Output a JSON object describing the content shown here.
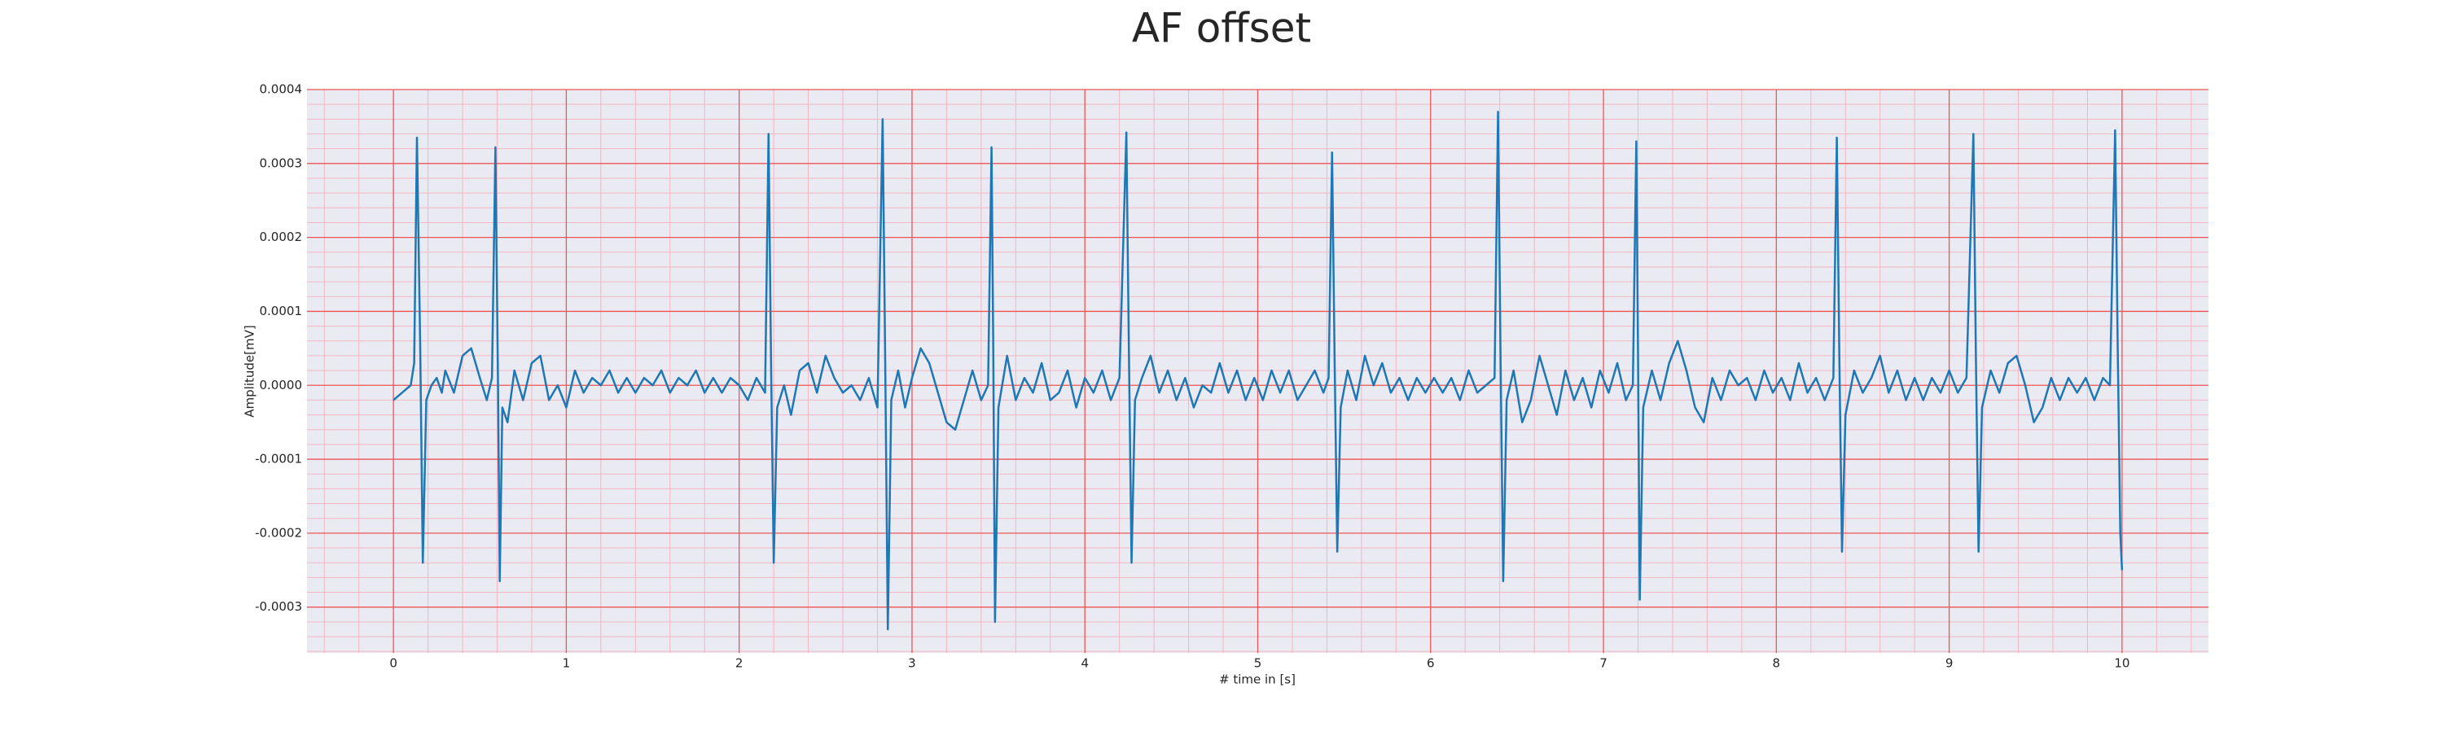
{
  "chart_data": {
    "type": "line",
    "title": "AF offset",
    "x_label": "# time in [s]",
    "y_label": "Amplitude[mV]",
    "color": "#1f77b4",
    "grid": true,
    "minor_grid": true,
    "minor_divisions": 5,
    "xlim": [
      -0.5,
      10.5
    ],
    "xticks": [
      0,
      1,
      2,
      3,
      4,
      5,
      6,
      7,
      8,
      9,
      10
    ],
    "ylim": [
      -0.000362,
      0.0004
    ],
    "yticks": [
      -0.0003,
      -0.0002,
      -0.0001,
      {
        "value": 0,
        "label": "0.0000"
      },
      0.0001,
      0.0002,
      0.0003,
      0.0004
    ],
    "x": [
      0.0,
      0.05,
      0.1,
      0.12,
      0.136,
      0.155,
      0.17,
      0.19,
      0.22,
      0.25,
      0.28,
      0.3,
      0.35,
      0.4,
      0.45,
      0.5,
      0.54,
      0.57,
      0.59,
      0.605,
      0.615,
      0.63,
      0.66,
      0.7,
      0.75,
      0.8,
      0.85,
      0.9,
      0.95,
      1.0,
      1.05,
      1.1,
      1.15,
      1.2,
      1.25,
      1.3,
      1.35,
      1.4,
      1.45,
      1.5,
      1.55,
      1.6,
      1.65,
      1.7,
      1.75,
      1.8,
      1.85,
      1.9,
      1.95,
      2.0,
      2.05,
      2.1,
      2.15,
      2.17,
      2.185,
      2.2,
      2.22,
      2.26,
      2.3,
      2.35,
      2.4,
      2.45,
      2.5,
      2.55,
      2.6,
      2.65,
      2.7,
      2.75,
      2.8,
      2.83,
      2.845,
      2.86,
      2.88,
      2.92,
      2.96,
      3.0,
      3.05,
      3.1,
      3.15,
      3.2,
      3.25,
      3.3,
      3.35,
      3.4,
      3.44,
      3.46,
      3.47,
      3.48,
      3.5,
      3.55,
      3.6,
      3.65,
      3.7,
      3.75,
      3.8,
      3.85,
      3.9,
      3.95,
      4.0,
      4.05,
      4.1,
      4.15,
      4.2,
      4.24,
      4.255,
      4.27,
      4.29,
      4.33,
      4.38,
      4.43,
      4.48,
      4.53,
      4.58,
      4.63,
      4.68,
      4.73,
      4.78,
      4.83,
      4.88,
      4.93,
      4.98,
      5.03,
      5.08,
      5.13,
      5.18,
      5.23,
      5.28,
      5.33,
      5.38,
      5.41,
      5.43,
      5.445,
      5.46,
      5.48,
      5.52,
      5.57,
      5.62,
      5.67,
      5.72,
      5.77,
      5.82,
      5.87,
      5.92,
      5.97,
      6.02,
      6.07,
      6.12,
      6.17,
      6.22,
      6.27,
      6.32,
      6.37,
      6.39,
      6.405,
      6.42,
      6.44,
      6.48,
      6.53,
      6.58,
      6.63,
      6.68,
      6.73,
      6.78,
      6.83,
      6.88,
      6.93,
      6.98,
      7.03,
      7.08,
      7.13,
      7.17,
      7.19,
      7.2,
      7.21,
      7.23,
      7.28,
      7.33,
      7.38,
      7.43,
      7.48,
      7.53,
      7.58,
      7.63,
      7.68,
      7.73,
      7.78,
      7.83,
      7.88,
      7.93,
      7.98,
      8.03,
      8.08,
      8.13,
      8.18,
      8.23,
      8.28,
      8.33,
      8.35,
      8.365,
      8.38,
      8.4,
      8.45,
      8.5,
      8.55,
      8.6,
      8.65,
      8.7,
      8.75,
      8.8,
      8.85,
      8.9,
      8.95,
      9.0,
      9.05,
      9.1,
      9.14,
      9.155,
      9.17,
      9.19,
      9.24,
      9.29,
      9.34,
      9.39,
      9.44,
      9.49,
      9.54,
      9.59,
      9.64,
      9.69,
      9.74,
      9.79,
      9.84,
      9.89,
      9.93,
      9.96,
      9.975,
      9.99,
      10.0
    ],
    "values": [
      -2e-05,
      -1e-05,
      0,
      3e-05,
      0.000335,
      5e-05,
      -0.00024,
      -2e-05,
      0,
      1e-05,
      -1e-05,
      2e-05,
      -1e-05,
      4e-05,
      5e-05,
      1e-05,
      -2e-05,
      1e-05,
      0.000322,
      0,
      -0.000265,
      -3e-05,
      -5e-05,
      2e-05,
      -2e-05,
      3e-05,
      4e-05,
      -2e-05,
      0,
      -3e-05,
      2e-05,
      -1e-05,
      1e-05,
      0,
      2e-05,
      -1e-05,
      1e-05,
      -1e-05,
      1e-05,
      0,
      2e-05,
      -1e-05,
      1e-05,
      0,
      2e-05,
      -1e-05,
      1e-05,
      -1e-05,
      1e-05,
      0,
      -2e-05,
      1e-05,
      -1e-05,
      0.00034,
      2e-05,
      -0.00024,
      -3e-05,
      0,
      -4e-05,
      2e-05,
      3e-05,
      -1e-05,
      4e-05,
      1e-05,
      -1e-05,
      0,
      -2e-05,
      1e-05,
      -3e-05,
      0.00036,
      3e-05,
      -0.00033,
      -2e-05,
      2e-05,
      -3e-05,
      1e-05,
      5e-05,
      3e-05,
      -1e-05,
      -5e-05,
      -6e-05,
      -2e-05,
      2e-05,
      -2e-05,
      0,
      0.000322,
      5e-05,
      -0.00032,
      -3e-05,
      4e-05,
      -2e-05,
      1e-05,
      -1e-05,
      3e-05,
      -2e-05,
      -1e-05,
      2e-05,
      -3e-05,
      1e-05,
      -1e-05,
      2e-05,
      -2e-05,
      1e-05,
      0.000342,
      4e-05,
      -0.00024,
      -2e-05,
      1e-05,
      4e-05,
      -1e-05,
      2e-05,
      -2e-05,
      1e-05,
      -3e-05,
      0,
      -1e-05,
      3e-05,
      -1e-05,
      2e-05,
      -2e-05,
      1e-05,
      -2e-05,
      2e-05,
      -1e-05,
      2e-05,
      -2e-05,
      0,
      2e-05,
      -1e-05,
      1e-05,
      0.000315,
      3e-05,
      -0.000225,
      -3e-05,
      2e-05,
      -2e-05,
      4e-05,
      0,
      3e-05,
      -1e-05,
      1e-05,
      -2e-05,
      1e-05,
      -1e-05,
      1e-05,
      -1e-05,
      1e-05,
      -2e-05,
      2e-05,
      -1e-05,
      0,
      1e-05,
      0.00037,
      3e-05,
      -0.000265,
      -2e-05,
      2e-05,
      -5e-05,
      -2e-05,
      4e-05,
      0,
      -4e-05,
      2e-05,
      -2e-05,
      1e-05,
      -3e-05,
      2e-05,
      -1e-05,
      3e-05,
      -2e-05,
      0,
      0.00033,
      4e-05,
      -0.00029,
      -3e-05,
      2e-05,
      -2e-05,
      3e-05,
      6e-05,
      2e-05,
      -3e-05,
      -5e-05,
      1e-05,
      -2e-05,
      2e-05,
      0,
      1e-05,
      -2e-05,
      2e-05,
      -1e-05,
      1e-05,
      -2e-05,
      3e-05,
      -1e-05,
      1e-05,
      -2e-05,
      1e-05,
      0.000335,
      3e-05,
      -0.000225,
      -4e-05,
      2e-05,
      -1e-05,
      1e-05,
      4e-05,
      -1e-05,
      2e-05,
      -2e-05,
      1e-05,
      -2e-05,
      1e-05,
      -1e-05,
      2e-05,
      -1e-05,
      1e-05,
      0.00034,
      3e-05,
      -0.000225,
      -3e-05,
      2e-05,
      -1e-05,
      3e-05,
      4e-05,
      0,
      -5e-05,
      -3e-05,
      1e-05,
      -2e-05,
      1e-05,
      -1e-05,
      1e-05,
      -2e-05,
      1e-05,
      0,
      0.000345,
      5e-05,
      -0.0002,
      -0.00025
    ]
  }
}
